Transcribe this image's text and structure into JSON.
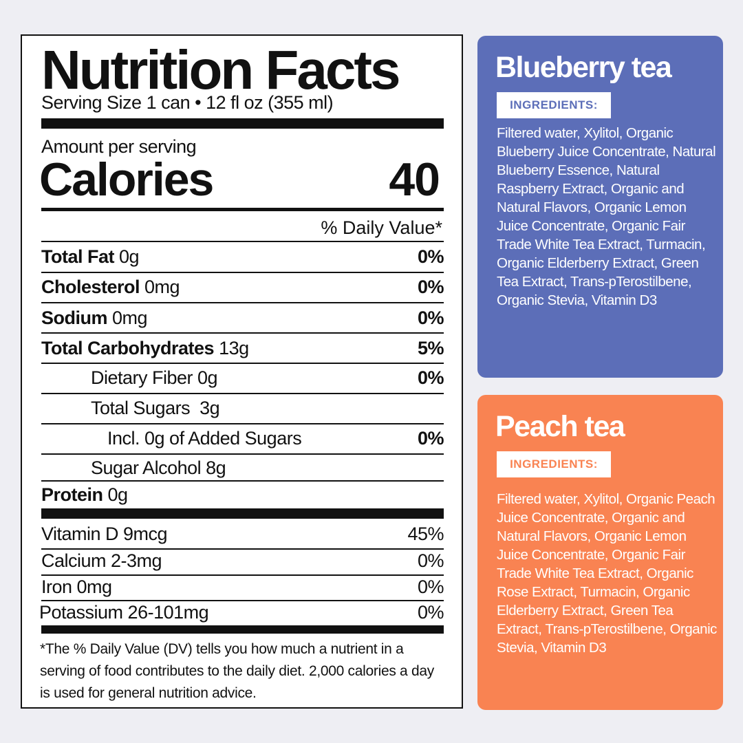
{
  "label": {
    "title": "Nutrition Facts",
    "serving": "Serving Size 1 can • 12 fl oz (355 ml)",
    "amount_per_serving": "Amount per serving",
    "calories_label": "Calories",
    "calories_value": "40",
    "dv_header": "% Daily Value*",
    "rows": [
      {
        "name": "Total Fat",
        "amount": " 0g",
        "dv": "0%"
      },
      {
        "name": "Cholesterol",
        "amount": " 0mg",
        "dv": "0%"
      },
      {
        "name": "Sodium",
        "amount": " 0mg",
        "dv": "0%"
      },
      {
        "name": "Total Carbohydrates",
        "amount": " 13g",
        "dv": "5%"
      },
      {
        "text": "Dietary Fiber 0g",
        "dv": "0%"
      },
      {
        "text": "Total Sugars  3g"
      },
      {
        "text": "Incl. 0g of Added Sugars",
        "dv": "0%"
      },
      {
        "text": "Sugar Alcohol 8g"
      },
      {
        "name": "Protein",
        "amount": " 0g"
      }
    ],
    "vitamins": [
      {
        "text": "Vitamin D 9mcg",
        "dv": "45%"
      },
      {
        "text": "Calcium 2-3mg",
        "dv": "0%"
      },
      {
        "text": "Iron 0mg",
        "dv": "0%"
      },
      {
        "text": "Potassium 26-101mg",
        "dv": "0%"
      }
    ],
    "footnote": "*The % Daily Value (DV) tells you how much a nutrient in a serving of food contributes to the daily diet. 2,000 calories a day is used for general nutrition advice."
  },
  "cards": {
    "blueberry": {
      "title": "Blueberry tea",
      "badge": "INGREDIENTS:",
      "ingredients": "Filtered water, Xylitol, Organic Blueberry Juice Concentrate, Natural Blueberry Essence, Natural Raspberry Extract, Organic and Natural Flavors, Organic Lemon Juice Concentrate, Organic Fair Trade White Tea Extract, Turmacin, Organic Elderberry Extract, Green Tea Extract, Trans-pTerostilbene, Organic Stevia, Vitamin D3",
      "color": "#5c6eb8"
    },
    "peach": {
      "title": "Peach tea",
      "badge": "INGREDIENTS:",
      "ingredients": "Filtered water, Xylitol, Organic Peach Juice Concentrate, Organic and Natural Flavors, Organic Lemon Juice Concentrate, Organic Fair Trade White Tea Extract, Organic Rose Extract, Turmacin, Organic Elderberry Extract, Green Tea Extract, Trans-pTerostilbene, Organic Stevia, Vitamin D3",
      "color": "#f98352"
    }
  }
}
